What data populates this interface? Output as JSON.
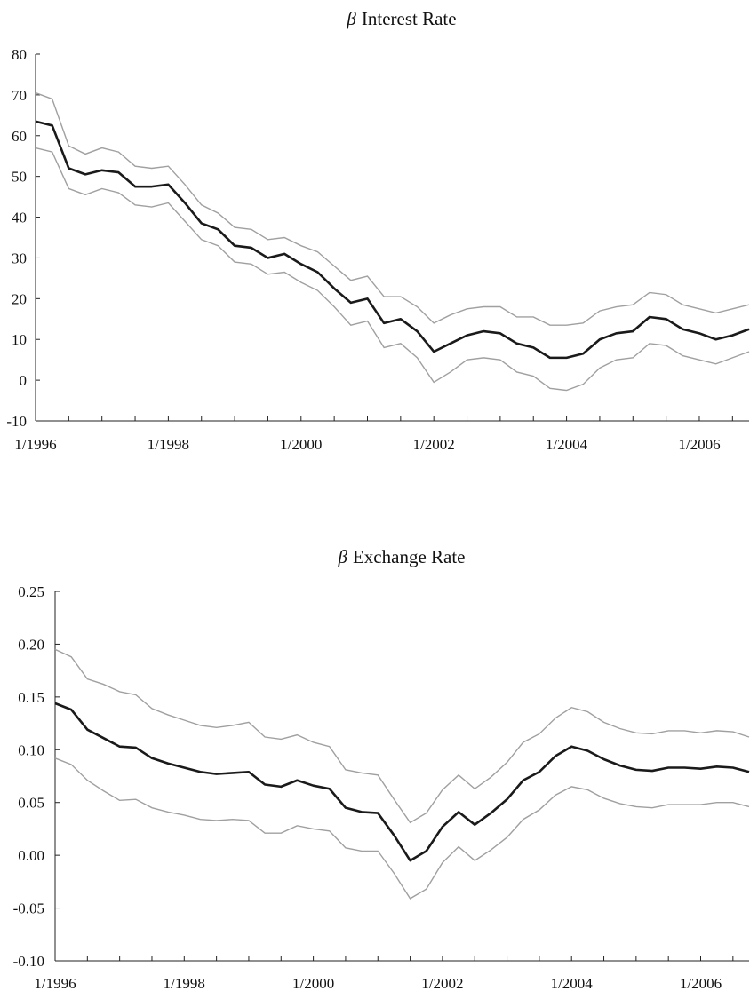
{
  "chart_data": [
    {
      "type": "line",
      "title_symbol": "β",
      "title": "Interest Rate",
      "xlabel": "",
      "ylabel": "",
      "x_range": [
        1996.0,
        2006.75
      ],
      "ylim": [
        -10,
        80
      ],
      "yticks": [
        -10,
        0,
        10,
        20,
        30,
        40,
        50,
        60,
        70,
        80
      ],
      "ytick_labels": [
        "-10",
        "0",
        "10",
        "20",
        "30",
        "40",
        "50",
        "60",
        "70",
        "80"
      ],
      "xticks": [
        1996,
        1998,
        2000,
        2002,
        2004,
        2006
      ],
      "xtick_labels": [
        "1/1996",
        "1/1998",
        "1/2000",
        "1/2002",
        "1/2004",
        "1/2006"
      ],
      "x": [
        1996.0,
        1996.25,
        1996.5,
        1996.75,
        1997.0,
        1997.25,
        1997.5,
        1997.75,
        1998.0,
        1998.25,
        1998.5,
        1998.75,
        1999.0,
        1999.25,
        1999.5,
        1999.75,
        2000.0,
        2000.25,
        2000.5,
        2000.75,
        2001.0,
        2001.25,
        2001.5,
        2001.75,
        2002.0,
        2002.25,
        2002.5,
        2002.75,
        2003.0,
        2003.25,
        2003.5,
        2003.75,
        2004.0,
        2004.25,
        2004.5,
        2004.75,
        2005.0,
        2005.25,
        2005.5,
        2005.75,
        2006.0,
        2006.25,
        2006.5,
        2006.75
      ],
      "series": [
        {
          "role": "upper",
          "values": [
            70.5,
            69,
            57.5,
            55.5,
            57,
            56,
            52.5,
            52,
            52.5,
            48,
            43,
            41,
            37.5,
            37,
            34.5,
            35,
            33,
            31.5,
            28,
            24.5,
            25.5,
            20.5,
            20.5,
            18,
            14,
            16,
            17.5,
            18,
            18,
            15.5,
            15.5,
            13.5,
            13.5,
            14,
            17,
            18,
            18.5,
            21.5,
            21,
            18.5,
            17.5,
            16.5,
            17.5,
            18.5
          ]
        },
        {
          "role": "estimate",
          "values": [
            63.5,
            62.5,
            52,
            50.5,
            51.5,
            51,
            47.5,
            47.5,
            48,
            43.5,
            38.5,
            37,
            33,
            32.5,
            30,
            31,
            28.5,
            26.5,
            22.5,
            19,
            20,
            14,
            15,
            12,
            7,
            9,
            11,
            12,
            11.5,
            9,
            8,
            5.5,
            5.5,
            6.5,
            10,
            11.5,
            12,
            15.5,
            15,
            12.5,
            11.5,
            10,
            11,
            12.5
          ]
        },
        {
          "role": "lower",
          "values": [
            57,
            56,
            47,
            45.5,
            47,
            46,
            43,
            42.5,
            43.5,
            39,
            34.5,
            33,
            29,
            28.5,
            26,
            26.5,
            24,
            22,
            18,
            13.5,
            14.5,
            8,
            9,
            5.5,
            -0.5,
            2,
            5,
            5.5,
            5,
            2,
            1,
            -2,
            -2.5,
            -1,
            3,
            5,
            5.5,
            9,
            8.5,
            6,
            5,
            4,
            5.5,
            7
          ]
        }
      ]
    },
    {
      "type": "line",
      "title_symbol": "β",
      "title": "Exchange Rate",
      "xlabel": "",
      "ylabel": "",
      "x_range": [
        1996.0,
        2006.75
      ],
      "ylim": [
        -0.1,
        0.25
      ],
      "yticks": [
        -0.1,
        -0.05,
        0.0,
        0.05,
        0.1,
        0.15,
        0.2,
        0.25
      ],
      "ytick_labels": [
        "-0.10",
        "-0.05",
        "0.00",
        "0.05",
        "0.10",
        "0.15",
        "0.20",
        "0.25"
      ],
      "xticks": [
        1996,
        1998,
        2000,
        2002,
        2004,
        2006
      ],
      "xtick_labels": [
        "1/1996",
        "1/1998",
        "1/2000",
        "1/2002",
        "1/2004",
        "1/2006"
      ],
      "x": [
        1996.0,
        1996.25,
        1996.5,
        1996.75,
        1997.0,
        1997.25,
        1997.5,
        1997.75,
        1998.0,
        1998.25,
        1998.5,
        1998.75,
        1999.0,
        1999.25,
        1999.5,
        1999.75,
        2000.0,
        2000.25,
        2000.5,
        2000.75,
        2001.0,
        2001.25,
        2001.5,
        2001.75,
        2002.0,
        2002.25,
        2002.5,
        2002.75,
        2003.0,
        2003.25,
        2003.5,
        2003.75,
        2004.0,
        2004.25,
        2004.5,
        2004.75,
        2005.0,
        2005.25,
        2005.5,
        2005.75,
        2006.0,
        2006.25,
        2006.5,
        2006.75
      ],
      "series": [
        {
          "role": "upper",
          "values": [
            0.195,
            0.188,
            0.167,
            0.162,
            0.155,
            0.152,
            0.139,
            0.133,
            0.128,
            0.123,
            0.121,
            0.123,
            0.126,
            0.112,
            0.11,
            0.114,
            0.107,
            0.103,
            0.081,
            0.078,
            0.076,
            0.053,
            0.031,
            0.04,
            0.062,
            0.076,
            0.063,
            0.074,
            0.088,
            0.107,
            0.115,
            0.13,
            0.14,
            0.136,
            0.126,
            0.12,
            0.116,
            0.115,
            0.118,
            0.118,
            0.116,
            0.118,
            0.117,
            0.112
          ]
        },
        {
          "role": "estimate",
          "values": [
            0.144,
            0.138,
            0.119,
            0.111,
            0.103,
            0.102,
            0.092,
            0.087,
            0.083,
            0.079,
            0.077,
            0.078,
            0.079,
            0.067,
            0.065,
            0.071,
            0.066,
            0.063,
            0.045,
            0.041,
            0.04,
            0.019,
            -0.005,
            0.004,
            0.027,
            0.041,
            0.029,
            0.04,
            0.053,
            0.071,
            0.079,
            0.094,
            0.103,
            0.099,
            0.091,
            0.085,
            0.081,
            0.08,
            0.083,
            0.083,
            0.082,
            0.084,
            0.083,
            0.079
          ]
        },
        {
          "role": "lower",
          "values": [
            0.092,
            0.086,
            0.071,
            0.061,
            0.052,
            0.053,
            0.045,
            0.041,
            0.038,
            0.034,
            0.033,
            0.034,
            0.033,
            0.021,
            0.021,
            0.028,
            0.025,
            0.023,
            0.007,
            0.004,
            0.004,
            -0.017,
            -0.041,
            -0.032,
            -0.007,
            0.008,
            -0.005,
            0.005,
            0.017,
            0.034,
            0.043,
            0.057,
            0.065,
            0.062,
            0.054,
            0.049,
            0.046,
            0.045,
            0.048,
            0.048,
            0.048,
            0.05,
            0.05,
            0.046
          ]
        }
      ]
    }
  ]
}
